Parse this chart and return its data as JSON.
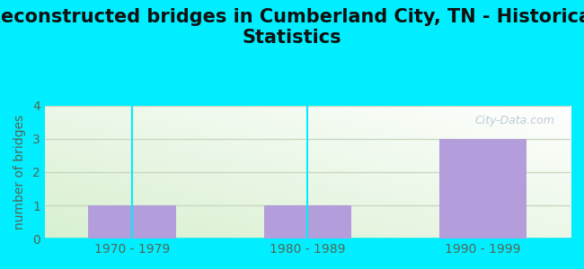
{
  "title": "Reconstructed bridges in Cumberland City, TN - Historical\nStatistics",
  "categories": [
    "1970 - 1979",
    "1980 - 1989",
    "1990 - 1999"
  ],
  "values": [
    1,
    1,
    3
  ],
  "bar_color": "#b39ddb",
  "ylabel": "number of bridges",
  "ylim": [
    0,
    4
  ],
  "yticks": [
    0,
    1,
    2,
    3,
    4
  ],
  "background_outer": "#00eeff",
  "background_plot_top_right": "#ffffff",
  "background_plot_bottom_left": "#d8f0d0",
  "grid_color": "#c8d8c0",
  "title_fontsize": 15,
  "title_color": "#111111",
  "axis_label_color": "#556655",
  "tick_label_color": "#556655",
  "watermark_text": "City-Data.com",
  "bar_width": 0.5,
  "figsize": [
    6.5,
    3.0
  ],
  "dpi": 100
}
